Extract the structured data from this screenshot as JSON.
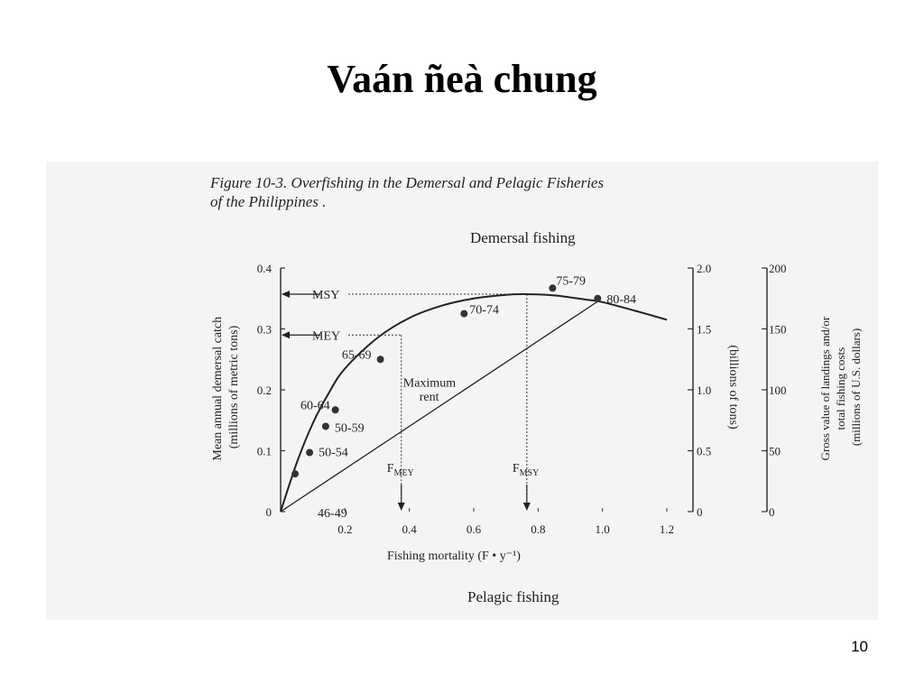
{
  "slide": {
    "title": "Vaán ñeà chung",
    "page_number": "10"
  },
  "chart_data": {
    "type": "line",
    "title": "Figure 10-3. Overfishing in the Demersal and Pelagic Fisheries of the Philippines .",
    "subtitle_top": "Demersal fishing",
    "subtitle_bottom": "Pelagic fishing",
    "xlabel": "Fishing mortality (F • y⁻¹)",
    "ylabel": "Mean annual demersal catch (millions of metric tons)",
    "ylabel_right1": "(billions of tons)",
    "ylabel_right2": "Gross value of landings and/or total fishing costs (millions of U.S. dollars)",
    "xlim": [
      0,
      1.2
    ],
    "ylim": [
      0,
      0.4
    ],
    "x_ticks": [
      "0.2",
      "0.4",
      "0.6",
      "0.8",
      "1.0",
      "1.2"
    ],
    "y_ticks": [
      "0",
      "0.1",
      "0.2",
      "0.3",
      "0.4"
    ],
    "right1_ticks": [
      "0",
      "0.5",
      "1.0",
      "1.5",
      "2.0"
    ],
    "right2_ticks": [
      "0",
      "50",
      "100",
      "150",
      "200"
    ],
    "grid": false,
    "series": [
      {
        "name": "yield curve",
        "x": [
          0,
          0.05,
          0.1,
          0.15,
          0.2,
          0.3,
          0.4,
          0.5,
          0.6,
          0.7,
          0.76,
          0.85,
          0.95,
          1.0,
          1.1,
          1.2
        ],
        "y": [
          0,
          0.08,
          0.145,
          0.195,
          0.235,
          0.285,
          0.318,
          0.338,
          0.35,
          0.356,
          0.357,
          0.355,
          0.348,
          0.344,
          0.33,
          0.315
        ]
      },
      {
        "name": "cost line",
        "x": [
          0,
          0.985
        ],
        "y": [
          0,
          0.345
        ]
      }
    ],
    "points": [
      {
        "label": "46-49",
        "x": 0.045,
        "y": 0.062
      },
      {
        "label": "50-54",
        "x": 0.09,
        "y": 0.097
      },
      {
        "label": "50-59",
        "x": 0.14,
        "y": 0.14
      },
      {
        "label": "60-64",
        "x": 0.17,
        "y": 0.167
      },
      {
        "label": "65-69",
        "x": 0.31,
        "y": 0.25
      },
      {
        "label": "70-74",
        "x": 0.57,
        "y": 0.325
      },
      {
        "label": "75-79",
        "x": 0.845,
        "y": 0.367
      },
      {
        "label": "80-84",
        "x": 0.985,
        "y": 0.35
      }
    ],
    "annotations": {
      "msy": {
        "label": "MSY",
        "y": 0.357,
        "x": 0.765
      },
      "mey": {
        "label": "MEY",
        "y": 0.29,
        "x": 0.375
      },
      "fmey": {
        "label": "F",
        "sub": "MEY",
        "x": 0.375
      },
      "fmsy": {
        "label": "F",
        "sub": "MSY",
        "x": 0.765
      },
      "max_rent_line1": "Maximum",
      "max_rent_line2": "rent"
    }
  }
}
